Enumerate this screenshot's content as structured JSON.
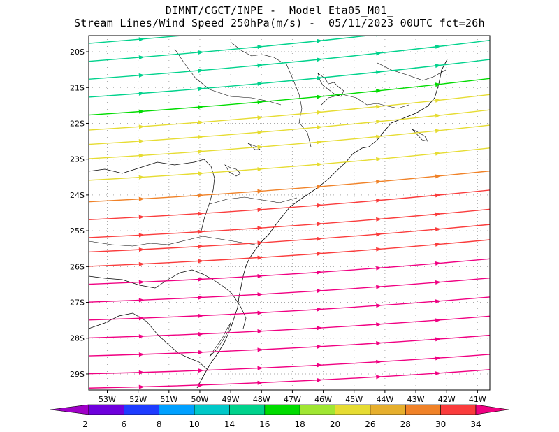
{
  "title": {
    "line1": "DIMNT/CGCT/INPE -  Model Eta05_M01_",
    "line2": "Stream Lines/Wind Speed 250hPa(m/s) -  05/11/2023 00UTC fct=26h"
  },
  "map": {
    "lon_range": [
      -53.6,
      -40.6
    ],
    "lat_range": [
      -29.45,
      -19.55
    ],
    "lon_ticks": [
      {
        "value": -53,
        "label": "53W"
      },
      {
        "value": -52,
        "label": "52W"
      },
      {
        "value": -51,
        "label": "51W"
      },
      {
        "value": -50,
        "label": "50W"
      },
      {
        "value": -49,
        "label": "49W"
      },
      {
        "value": -48,
        "label": "48W"
      },
      {
        "value": -47,
        "label": "47W"
      },
      {
        "value": -46,
        "label": "46W"
      },
      {
        "value": -45,
        "label": "45W"
      },
      {
        "value": -44,
        "label": "44W"
      },
      {
        "value": -43,
        "label": "43W"
      },
      {
        "value": -42,
        "label": "42W"
      },
      {
        "value": -41,
        "label": "41W"
      }
    ],
    "lat_ticks": [
      {
        "value": -20,
        "label": "20S"
      },
      {
        "value": -21,
        "label": "21S"
      },
      {
        "value": -22,
        "label": "22S"
      },
      {
        "value": -23,
        "label": "23S"
      },
      {
        "value": -24,
        "label": "24S"
      },
      {
        "value": -25,
        "label": "25S"
      },
      {
        "value": -26,
        "label": "26S"
      },
      {
        "value": -27,
        "label": "27S"
      },
      {
        "value": -28,
        "label": "28S"
      },
      {
        "value": -29,
        "label": "29S"
      }
    ]
  },
  "colorbar": {
    "labels": [
      "2",
      "6",
      "8",
      "10",
      "14",
      "16",
      "18",
      "20",
      "26",
      "28",
      "30",
      "34"
    ],
    "colors": [
      "#a000c8",
      "#6e00dc",
      "#1e3cff",
      "#00a0ff",
      "#00c8c8",
      "#00d28c",
      "#00dc00",
      "#a0e632",
      "#e6dc32",
      "#e6af2d",
      "#f08228",
      "#fa3c3c",
      "#f00082"
    ]
  },
  "streamlines": [
    {
      "lat": -19.78,
      "speed": 14
    },
    {
      "lat": -20.28,
      "speed": 14
    },
    {
      "lat": -20.78,
      "speed": 14
    },
    {
      "lat": -21.28,
      "speed": 15
    },
    {
      "lat": -21.78,
      "speed": 17
    },
    {
      "lat": -22.2,
      "speed": 20
    },
    {
      "lat": -22.6,
      "speed": 21
    },
    {
      "lat": -23.0,
      "speed": 23
    },
    {
      "lat": -23.6,
      "speed": 24
    },
    {
      "lat": -24.2,
      "speed": 28
    },
    {
      "lat": -24.7,
      "speed": 30
    },
    {
      "lat": -25.2,
      "speed": 31
    },
    {
      "lat": -25.6,
      "speed": 31
    },
    {
      "lat": -26.0,
      "speed": 32
    },
    {
      "lat": -26.5,
      "speed": 35
    },
    {
      "lat": -27.0,
      "speed": 35
    },
    {
      "lat": -27.5,
      "speed": 35
    },
    {
      "lat": -28.0,
      "speed": 35
    },
    {
      "lat": -28.5,
      "speed": 35
    },
    {
      "lat": -29.0,
      "speed": 35
    },
    {
      "lat": -29.4,
      "speed": 35
    }
  ]
}
